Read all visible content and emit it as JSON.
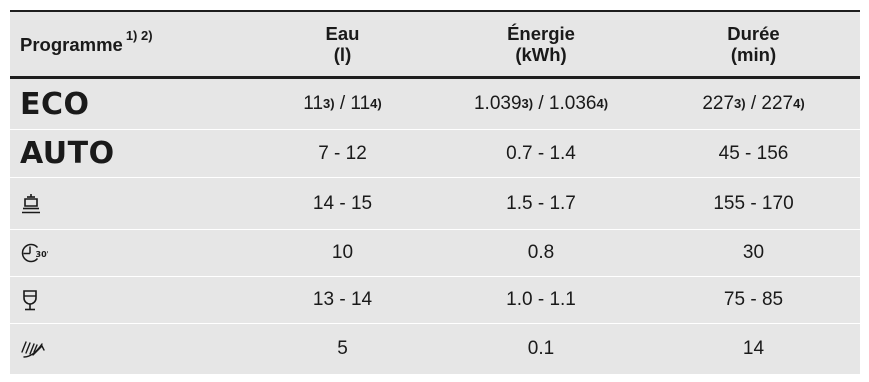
{
  "table": {
    "headers": {
      "programme": "Programme",
      "programme_notes": "1) 2)",
      "water_line1": "Eau",
      "water_line2": "(l)",
      "energy_line1": "Énergie",
      "energy_line2": "(kWh)",
      "duration_line1": "Durée",
      "duration_line2": "(min)"
    },
    "rows": [
      {
        "programme": "ECO",
        "water_a": "11",
        "water_a_note": "3)",
        "water_sep": " / ",
        "water_b": "11",
        "water_b_note": "4)",
        "energy_a": "1.039",
        "energy_a_note": "3)",
        "energy_sep": " / ",
        "energy_b": "1.036",
        "energy_b_note": "4)",
        "duration_a": "227",
        "duration_a_note": "3)",
        "duration_sep": " / ",
        "duration_b": "227",
        "duration_b_note": "4)"
      },
      {
        "programme": "AUTO",
        "water": "7 - 12",
        "energy": "0.7 - 1.4",
        "duration": "45 - 156"
      },
      {
        "programme_icon": "pots-pans-icon",
        "water": "14 - 15",
        "energy": "1.5 - 1.7",
        "duration": "155 - 170"
      },
      {
        "programme_icon": "quick-30-icon",
        "water": "10",
        "energy": "0.8",
        "duration": "30"
      },
      {
        "programme_icon": "glass-icon",
        "water": "13 - 14",
        "energy": "1.0 - 1.1",
        "duration": "75 - 85"
      },
      {
        "programme_icon": "rinse-spray-icon",
        "water": "5",
        "energy": "0.1",
        "duration": "14"
      }
    ]
  }
}
